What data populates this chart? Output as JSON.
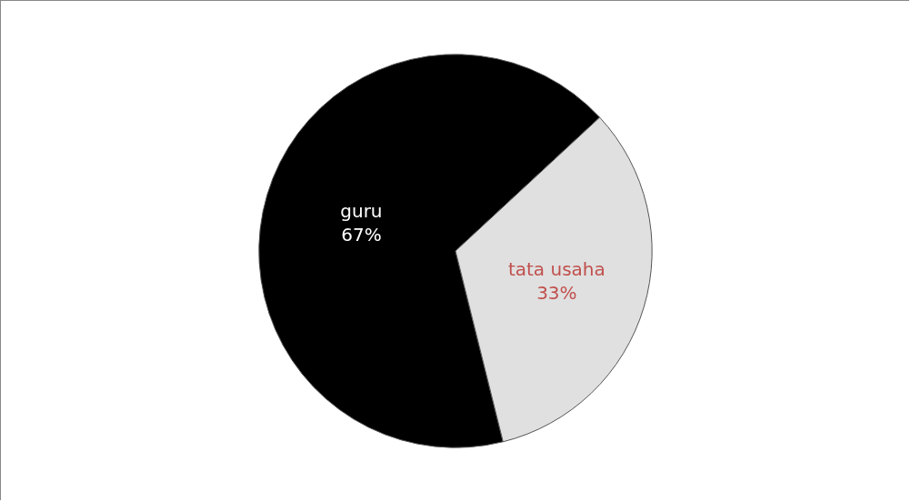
{
  "chart_data": {
    "type": "pie",
    "categories": [
      "guru",
      "tata usaha"
    ],
    "values": [
      67,
      33
    ],
    "colors": [
      "#000000",
      "#e0e0e0"
    ],
    "value_labels": [
      "67%",
      "33%"
    ],
    "legend": false
  }
}
